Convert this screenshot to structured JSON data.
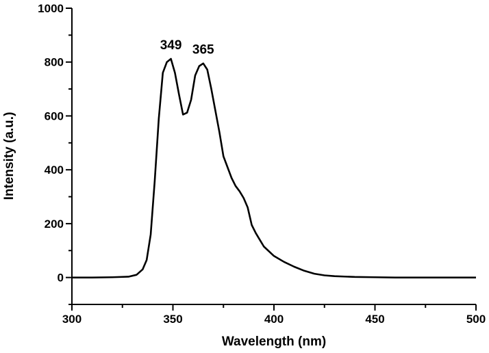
{
  "chart_data": {
    "type": "line",
    "title": "",
    "xlabel": "Wavelength (nm)",
    "ylabel": "Intensity (a.u.)",
    "xlim": [
      300,
      500
    ],
    "ylim": [
      -100,
      1000
    ],
    "x_ticks": [
      300,
      350,
      400,
      450,
      500
    ],
    "y_ticks": [
      0,
      200,
      400,
      600,
      800,
      1000
    ],
    "grid": false,
    "legend": "none",
    "line_color": "#000000",
    "annotations": [
      {
        "text": "349",
        "x": 349,
        "y": 812
      },
      {
        "text": "365",
        "x": 365,
        "y": 795
      }
    ],
    "series": [
      {
        "x": [
          300,
          310,
          320,
          328,
          332,
          335,
          337,
          339,
          341,
          343,
          345,
          347,
          349,
          351,
          353,
          355,
          357,
          359,
          361,
          363,
          365,
          367,
          369,
          371,
          373,
          375,
          377,
          379,
          381,
          383,
          385,
          387,
          389,
          391,
          393,
          395,
          400,
          405,
          410,
          415,
          420,
          425,
          430,
          440,
          450,
          460,
          475,
          500
        ],
        "y": [
          0,
          0,
          1,
          3,
          10,
          30,
          65,
          160,
          360,
          590,
          760,
          800,
          812,
          760,
          680,
          605,
          612,
          660,
          750,
          785,
          795,
          772,
          700,
          620,
          540,
          450,
          410,
          370,
          340,
          320,
          295,
          260,
          195,
          165,
          140,
          115,
          80,
          58,
          40,
          25,
          14,
          8,
          5,
          2,
          1,
          0,
          0,
          0
        ]
      }
    ]
  }
}
